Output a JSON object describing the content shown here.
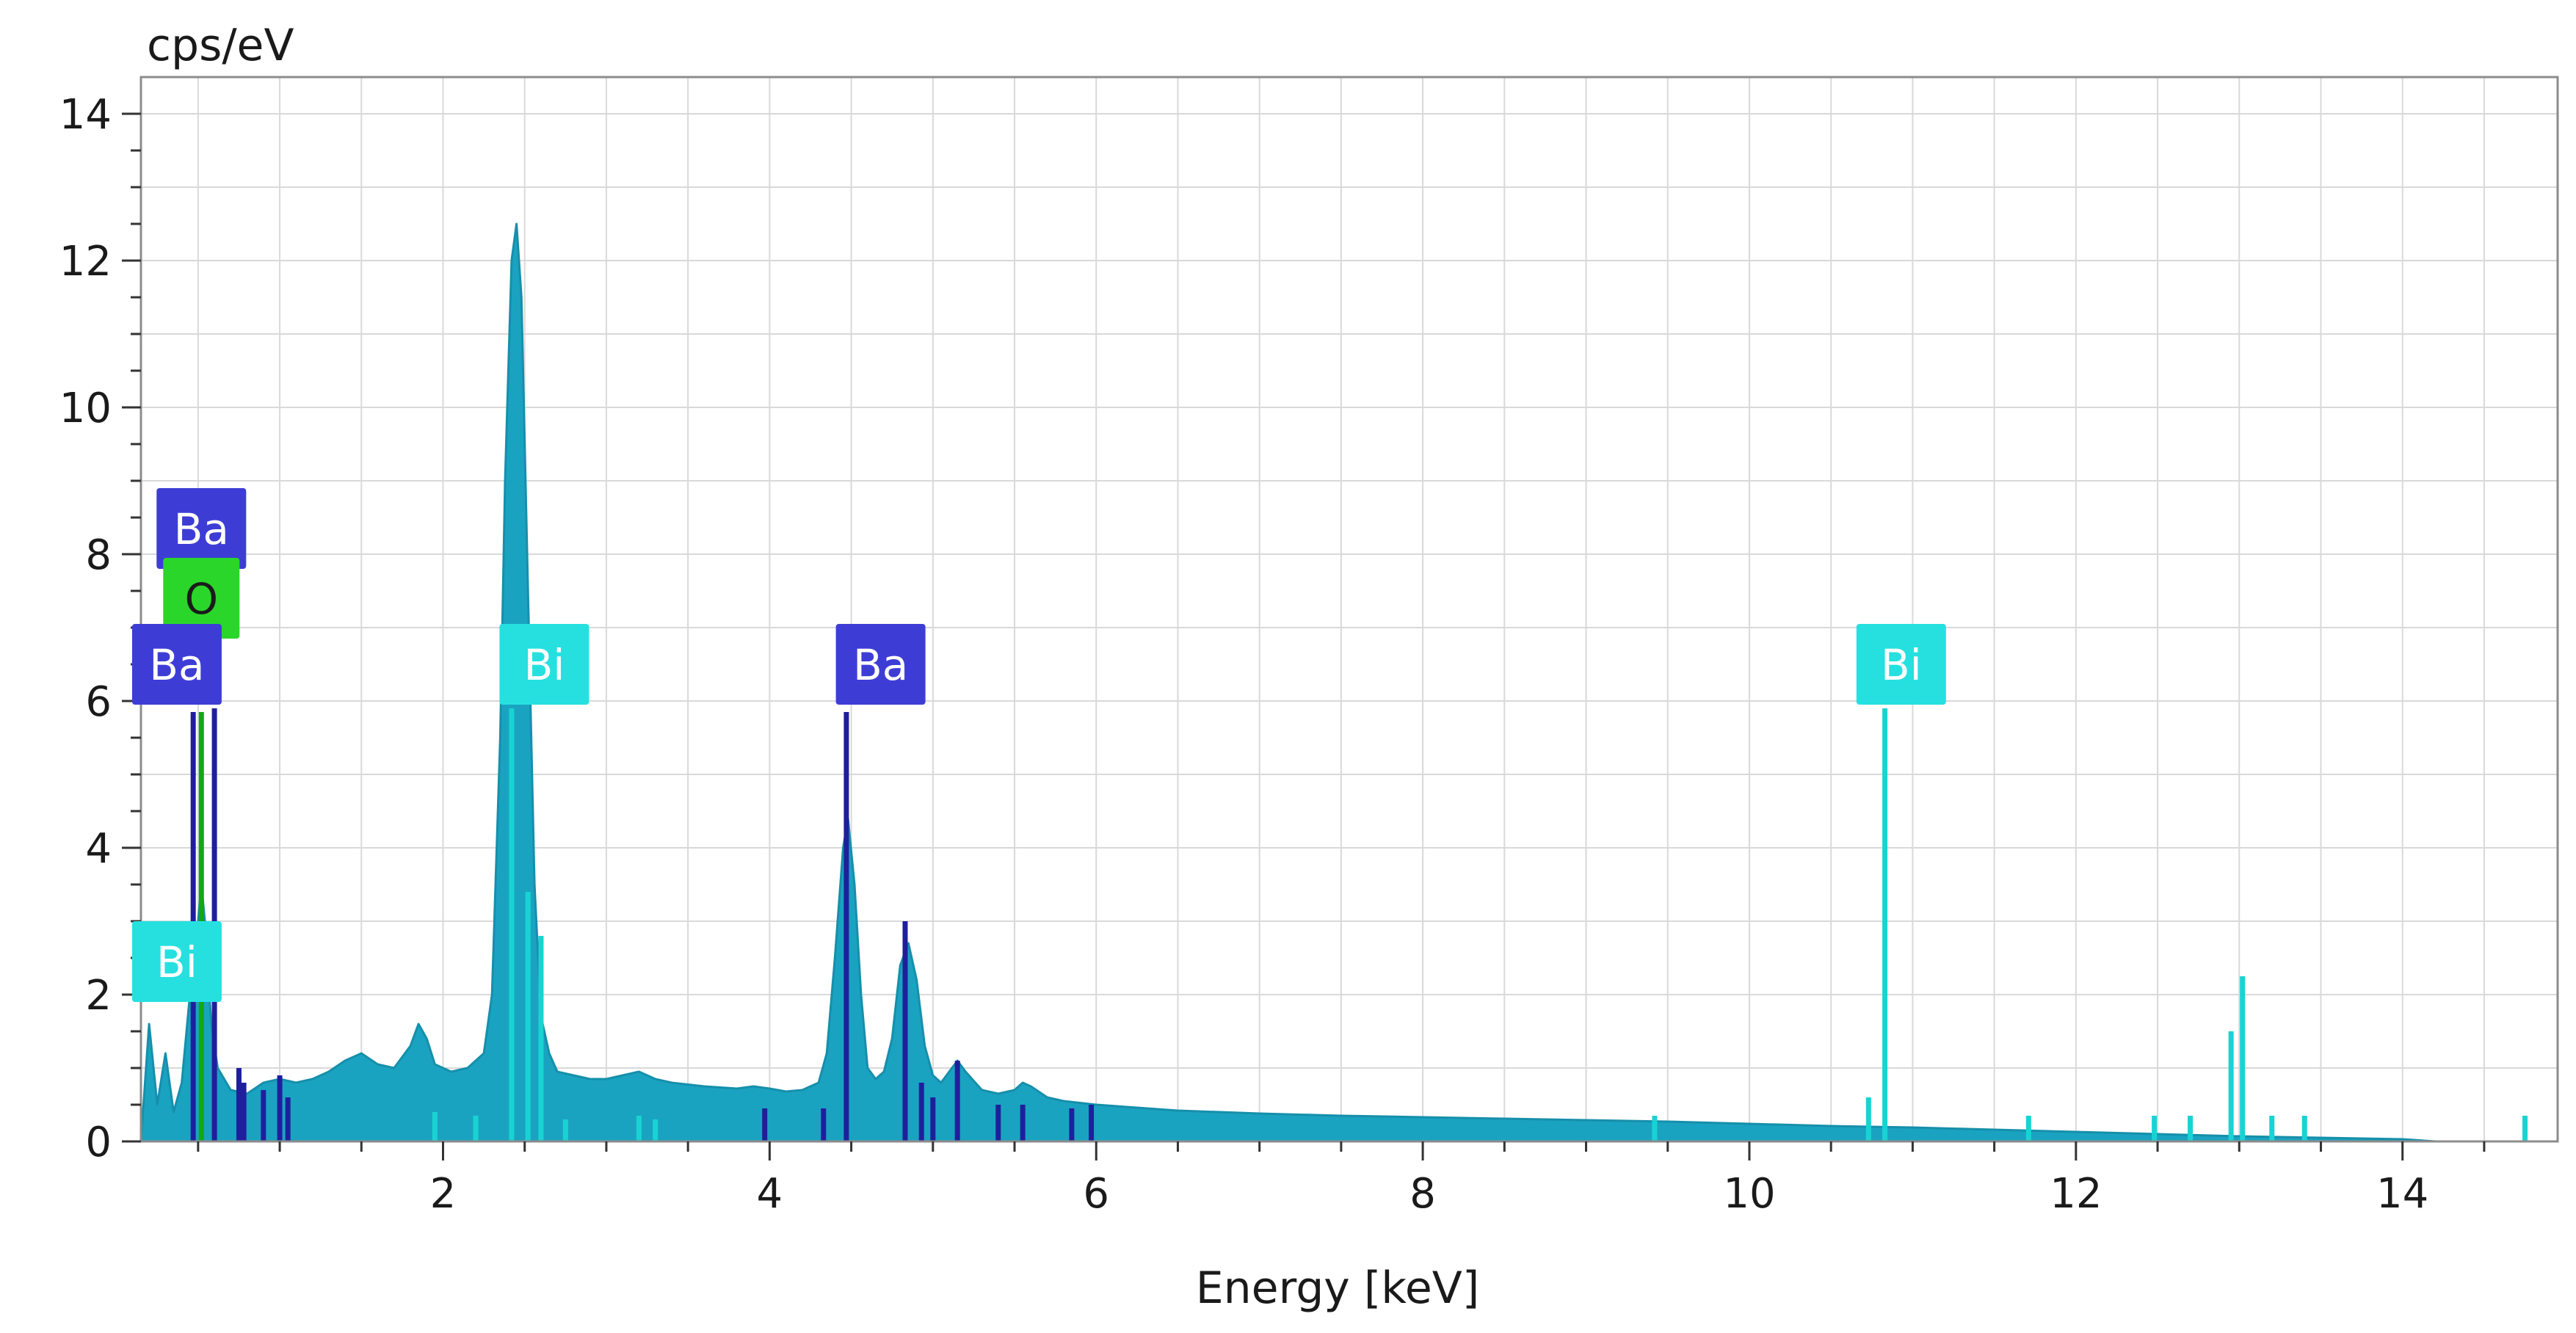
{
  "chart_data": {
    "type": "area",
    "title": "",
    "xlabel": "Energy [keV]",
    "ylabel": "cps/eV",
    "xlim": [
      0.15,
      14.95
    ],
    "ylim": [
      0,
      14.5
    ],
    "x_ticks": [
      2,
      4,
      6,
      8,
      10,
      12,
      14
    ],
    "y_ticks": [
      0,
      2,
      4,
      6,
      8,
      10,
      12,
      14
    ],
    "grid": true,
    "legend": "none",
    "colors": {
      "spectrum_fill": "#1aa3c1",
      "spectrum_edge": "#168fab",
      "grid": "#d9d9d9",
      "Ba": "#3d3dd6",
      "Ba_line": "#1f1f9c",
      "O": "#2ad62a",
      "O_line": "#12a812",
      "Bi": "#26e0e0",
      "Bi_line": "#19d3d3"
    },
    "spectrum": {
      "x": [
        0.15,
        0.2,
        0.25,
        0.3,
        0.35,
        0.4,
        0.45,
        0.5,
        0.52,
        0.55,
        0.58,
        0.62,
        0.7,
        0.8,
        0.9,
        1.0,
        1.1,
        1.2,
        1.3,
        1.4,
        1.5,
        1.6,
        1.7,
        1.8,
        1.85,
        1.9,
        1.95,
        2.05,
        2.15,
        2.25,
        2.3,
        2.35,
        2.38,
        2.42,
        2.45,
        2.48,
        2.52,
        2.56,
        2.6,
        2.65,
        2.7,
        2.8,
        2.9,
        3.0,
        3.1,
        3.2,
        3.3,
        3.4,
        3.6,
        3.8,
        3.9,
        4.0,
        4.1,
        4.2,
        4.3,
        4.35,
        4.4,
        4.45,
        4.48,
        4.52,
        4.56,
        4.6,
        4.65,
        4.7,
        4.75,
        4.8,
        4.85,
        4.9,
        4.95,
        5.0,
        5.05,
        5.1,
        5.15,
        5.2,
        5.3,
        5.4,
        5.5,
        5.55,
        5.6,
        5.7,
        5.8,
        6.0,
        6.5,
        7.0,
        7.5,
        8.0,
        8.5,
        9.0,
        9.5,
        10.0,
        10.5,
        11.0,
        11.5,
        12.0,
        12.5,
        13.0,
        13.5,
        14.0,
        14.2
      ],
      "y": [
        0,
        1.6,
        0.5,
        1.2,
        0.4,
        0.8,
        2.0,
        3.0,
        3.5,
        2.8,
        1.6,
        1.0,
        0.7,
        0.65,
        0.8,
        0.85,
        0.8,
        0.85,
        0.95,
        1.1,
        1.2,
        1.05,
        1.0,
        1.3,
        1.6,
        1.4,
        1.05,
        0.95,
        1.0,
        1.2,
        2.0,
        5.5,
        9.0,
        12.0,
        12.5,
        11.5,
        7.5,
        3.5,
        1.7,
        1.2,
        0.95,
        0.9,
        0.85,
        0.85,
        0.9,
        0.95,
        0.85,
        0.8,
        0.75,
        0.72,
        0.75,
        0.72,
        0.68,
        0.7,
        0.8,
        1.2,
        2.5,
        4.0,
        4.4,
        3.5,
        2.0,
        1.0,
        0.85,
        0.95,
        1.4,
        2.4,
        2.7,
        2.2,
        1.3,
        0.9,
        0.8,
        0.95,
        1.1,
        0.95,
        0.7,
        0.65,
        0.7,
        0.8,
        0.75,
        0.6,
        0.55,
        0.5,
        0.42,
        0.38,
        0.35,
        0.33,
        0.31,
        0.29,
        0.27,
        0.24,
        0.21,
        0.19,
        0.16,
        0.13,
        0.1,
        0.07,
        0.05,
        0.03,
        0.0
      ]
    },
    "peak_lines": [
      {
        "element": "Ba",
        "x": 0.47,
        "y": 5.85
      },
      {
        "element": "O",
        "x": 0.52,
        "y": 5.85
      },
      {
        "element": "Ba",
        "x": 0.6,
        "y": 5.9
      },
      {
        "element": "Ba",
        "x": 0.75,
        "y": 1.0
      },
      {
        "element": "Ba",
        "x": 0.78,
        "y": 0.8
      },
      {
        "element": "Ba",
        "x": 0.9,
        "y": 0.7
      },
      {
        "element": "Ba",
        "x": 1.0,
        "y": 0.9
      },
      {
        "element": "Ba",
        "x": 1.05,
        "y": 0.6
      },
      {
        "element": "Bi",
        "x": 2.42,
        "y": 5.9
      },
      {
        "element": "Bi",
        "x": 2.52,
        "y": 3.4
      },
      {
        "element": "Bi",
        "x": 2.6,
        "y": 2.8
      },
      {
        "element": "Bi",
        "x": 1.95,
        "y": 0.4
      },
      {
        "element": "Bi",
        "x": 2.2,
        "y": 0.35
      },
      {
        "element": "Bi",
        "x": 2.75,
        "y": 0.3
      },
      {
        "element": "Bi",
        "x": 3.2,
        "y": 0.35
      },
      {
        "element": "Bi",
        "x": 3.3,
        "y": 0.3
      },
      {
        "element": "Ba",
        "x": 3.97,
        "y": 0.45
      },
      {
        "element": "Ba",
        "x": 4.33,
        "y": 0.45
      },
      {
        "element": "Ba",
        "x": 4.47,
        "y": 5.85
      },
      {
        "element": "Ba",
        "x": 4.83,
        "y": 3.0
      },
      {
        "element": "Ba",
        "x": 4.93,
        "y": 0.8
      },
      {
        "element": "Ba",
        "x": 5.0,
        "y": 0.6
      },
      {
        "element": "Ba",
        "x": 5.15,
        "y": 1.1
      },
      {
        "element": "Ba",
        "x": 5.4,
        "y": 0.5
      },
      {
        "element": "Ba",
        "x": 5.55,
        "y": 0.5
      },
      {
        "element": "Ba",
        "x": 5.85,
        "y": 0.45
      },
      {
        "element": "Ba",
        "x": 5.97,
        "y": 0.5
      },
      {
        "element": "Bi",
        "x": 9.42,
        "y": 0.35
      },
      {
        "element": "Bi",
        "x": 10.73,
        "y": 0.6
      },
      {
        "element": "Bi",
        "x": 10.83,
        "y": 5.9
      },
      {
        "element": "Bi",
        "x": 11.71,
        "y": 0.35
      },
      {
        "element": "Bi",
        "x": 12.48,
        "y": 0.35
      },
      {
        "element": "Bi",
        "x": 12.7,
        "y": 0.35
      },
      {
        "element": "Bi",
        "x": 12.95,
        "y": 1.5
      },
      {
        "element": "Bi",
        "x": 13.02,
        "y": 2.25
      },
      {
        "element": "Bi",
        "x": 13.2,
        "y": 0.35
      },
      {
        "element": "Bi",
        "x": 13.4,
        "y": 0.35
      },
      {
        "element": "Bi",
        "x": 14.75,
        "y": 0.35
      }
    ],
    "annotations": [
      {
        "text": "Ba",
        "element": "Ba",
        "x": 0.52,
        "y": 8.35
      },
      {
        "text": "O",
        "element": "O",
        "x": 0.52,
        "y": 7.4
      },
      {
        "text": "Ba",
        "element": "Ba",
        "x": 0.37,
        "y": 6.5
      },
      {
        "text": "Bi",
        "element": "Bi",
        "x": 0.37,
        "y": 2.45
      },
      {
        "text": "Bi",
        "element": "Bi",
        "x": 2.62,
        "y": 6.5
      },
      {
        "text": "Ba",
        "element": "Ba",
        "x": 4.68,
        "y": 6.5
      },
      {
        "text": "Bi",
        "element": "Bi",
        "x": 10.93,
        "y": 6.5
      }
    ]
  }
}
